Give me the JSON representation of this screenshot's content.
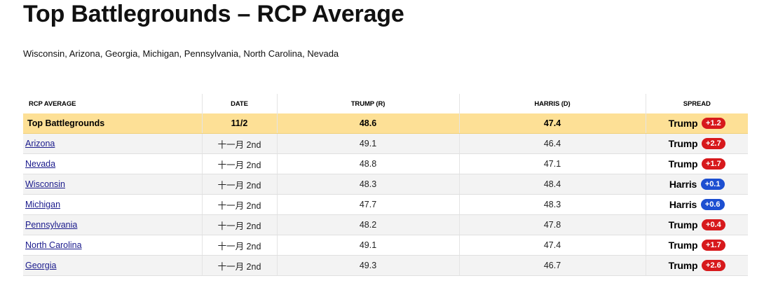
{
  "page": {
    "title": "Top Battlegrounds – RCP Average",
    "subtitle": "Wisconsin, Arizona, Georgia, Michigan, Pennsylvania, North Carolina, Nevada"
  },
  "table": {
    "headers": {
      "rcp_average": "RCP AVERAGE",
      "date": "DATE",
      "trump": "TRUMP (R)",
      "harris": "HARRIS (D)",
      "spread": "SPREAD"
    },
    "average_row": {
      "name": "Top Battlegrounds",
      "date": "11/2",
      "trump": "48.6",
      "harris": "47.4",
      "spread_leader": "Trump",
      "spread_value": "+1.2"
    },
    "rows": [
      {
        "state": "Arizona",
        "date": "十一月 2nd",
        "trump": "49.1",
        "harris": "46.4",
        "spread_leader": "Trump",
        "spread_value": "+2.7"
      },
      {
        "state": "Nevada",
        "date": "十一月 2nd",
        "trump": "48.8",
        "harris": "47.1",
        "spread_leader": "Trump",
        "spread_value": "+1.7"
      },
      {
        "state": "Wisconsin",
        "date": "十一月 2nd",
        "trump": "48.3",
        "harris": "48.4",
        "spread_leader": "Harris",
        "spread_value": "+0.1"
      },
      {
        "state": "Michigan",
        "date": "十一月 2nd",
        "trump": "47.7",
        "harris": "48.3",
        "spread_leader": "Harris",
        "spread_value": "+0.6"
      },
      {
        "state": "Pennsylvania",
        "date": "十一月 2nd",
        "trump": "48.2",
        "harris": "47.8",
        "spread_leader": "Trump",
        "spread_value": "+0.4"
      },
      {
        "state": "North Carolina",
        "date": "十一月 2nd",
        "trump": "49.1",
        "harris": "47.4",
        "spread_leader": "Trump",
        "spread_value": "+1.7"
      },
      {
        "state": "Georgia",
        "date": "十一月 2nd",
        "trump": "49.3",
        "harris": "46.7",
        "spread_leader": "Trump",
        "spread_value": "+2.6"
      }
    ]
  },
  "colors": {
    "republican": "#d7191c",
    "democrat": "#1d4fd1",
    "average_row_bg": "#fde096",
    "link": "#1a1a8c"
  }
}
